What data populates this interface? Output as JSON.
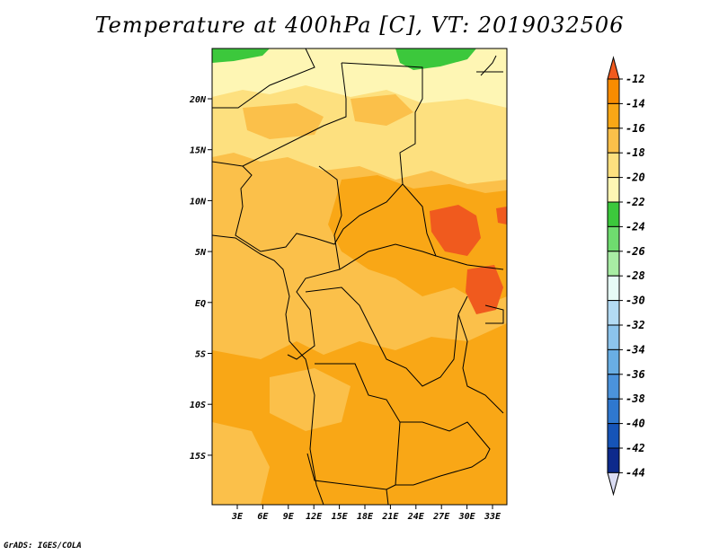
{
  "title": "Temperature at 400hPa [C], VT: 2019032506",
  "credit": "GrADS: IGES/COLA",
  "map": {
    "lat_labels": [
      "20N",
      "15N",
      "10N",
      "5N",
      "EQ",
      "5S",
      "10S",
      "15S"
    ],
    "lon_labels": [
      "3E",
      "6E",
      "9E",
      "12E",
      "15E",
      "18E",
      "21E",
      "24E",
      "27E",
      "30E",
      "33E"
    ]
  },
  "colorbar": {
    "levels": [
      "-12",
      "-14",
      "-16",
      "-18",
      "-20",
      "-22",
      "-24",
      "-26",
      "-28",
      "-30",
      "-32",
      "-34",
      "-36",
      "-38",
      "-40",
      "-42",
      "-44"
    ],
    "colors": [
      "#f05a1e",
      "#f88c00",
      "#f9a716",
      "#fbc04a",
      "#fde07f",
      "#fef6b4",
      "#3cc83c",
      "#6fdc6f",
      "#a8eda4",
      "#e6fbf6",
      "#b3dbf4",
      "#8cc4ec",
      "#69aee4",
      "#4b93dc",
      "#2f78cf",
      "#1654b7",
      "#0d2a8c",
      "#dadcf3"
    ]
  }
}
